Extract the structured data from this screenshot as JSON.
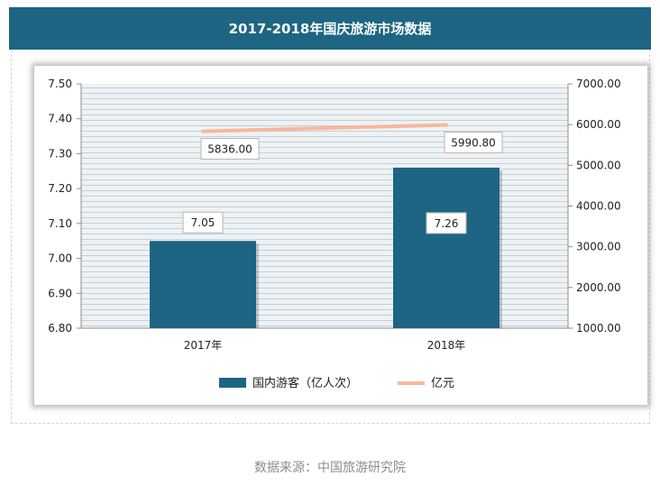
{
  "header": {
    "title": "2017-2018年国庆旅游市场数据"
  },
  "footer": {
    "source": "数据来源：中国旅游研究院"
  },
  "colors": {
    "header_bg": "#1d6583",
    "bar": "#1d6583",
    "line": "#f7b89a",
    "grid": "#d2d9de",
    "plot_bg": "#e9eef1"
  },
  "chart_data": {
    "type": "bar",
    "title": "2017-2018年国庆旅游市场数据",
    "categories": [
      "2017年",
      "2018年"
    ],
    "series": [
      {
        "name": "国内游客（亿人次）",
        "type": "bar",
        "axis": "left",
        "values": [
          7.05,
          7.26
        ],
        "labels": [
          "7.05",
          "7.26"
        ]
      },
      {
        "name": "亿元",
        "type": "line",
        "axis": "right",
        "values": [
          5836.0,
          5990.8
        ],
        "labels": [
          "5836.00",
          "5990.80"
        ]
      }
    ],
    "y_left": {
      "ylim": [
        6.8,
        7.5
      ],
      "ticks": [
        "6.80",
        "6.90",
        "7.00",
        "7.10",
        "7.20",
        "7.30",
        "7.40",
        "7.50"
      ]
    },
    "y_right": {
      "ylim": [
        1000,
        7000
      ],
      "ticks": [
        "1000.00",
        "2000.00",
        "3000.00",
        "4000.00",
        "5000.00",
        "6000.00",
        "7000.00"
      ]
    },
    "grid": true,
    "legend": "bottom"
  }
}
